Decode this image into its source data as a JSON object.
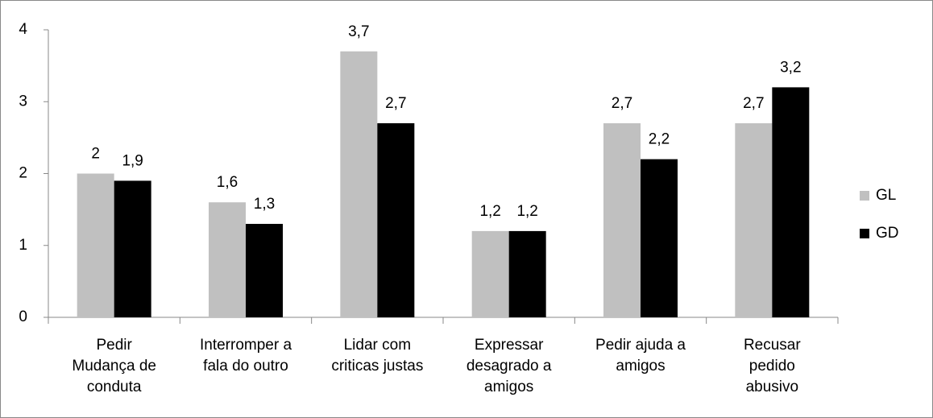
{
  "chart_data": {
    "type": "bar",
    "categories": [
      [
        "Pedir",
        "Mudança de",
        "conduta"
      ],
      [
        "Interromper a",
        "fala do outro"
      ],
      [
        "Lidar com",
        "criticas justas"
      ],
      [
        "Expressar",
        "desagrado a",
        "amigos"
      ],
      [
        "Pedir ajuda a",
        "amigos"
      ],
      [
        "Recusar",
        "pedido",
        "abusivo"
      ]
    ],
    "series": [
      {
        "name": "GL",
        "color": "#c0c0c0",
        "values": [
          2,
          1.6,
          3.7,
          1.2,
          2.7,
          2.7
        ],
        "value_labels": [
          "2",
          "1,6",
          "3,7",
          "1,2",
          "2,7",
          "2,7"
        ]
      },
      {
        "name": "GD",
        "color": "#000000",
        "values": [
          1.9,
          1.3,
          2.7,
          1.2,
          2.2,
          3.2
        ],
        "value_labels": [
          "1,9",
          "1,3",
          "2,7",
          "1,2",
          "2,2",
          "3,2"
        ]
      }
    ],
    "ylim": [
      0,
      4
    ],
    "yticks": [
      0,
      1,
      2,
      3,
      4
    ],
    "grid": false,
    "legend": "right"
  }
}
